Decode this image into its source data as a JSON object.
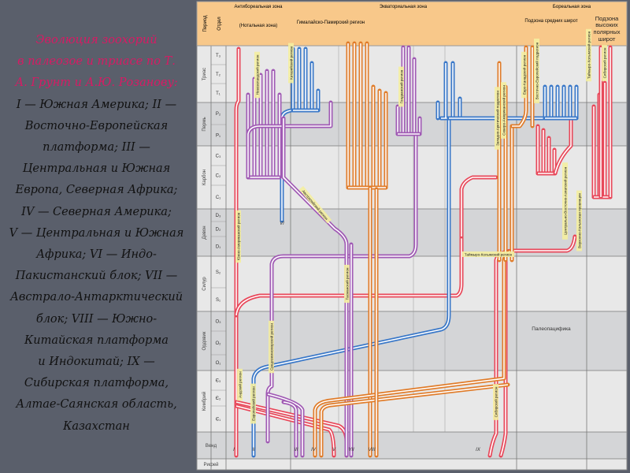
{
  "caption": {
    "title_lines": [
      "Эволюция зоохорий",
      "в палеозое и триасе по Т.",
      "А. Грунт и А.Ю. Розанову:"
    ],
    "body_lines": [
      "I — Южная Америка; II —",
      "Восточно-Европейская",
      "платформа; III —",
      "Центральная и Южная",
      "Европа, Северная Африка;",
      "IV — Северная Америка;",
      "V — Центральная и Южная",
      "Африка; VI — Индо-",
      "Пакистанский блок; VII —",
      "Австрало-Антарктический",
      "блок; VIII — Южно-",
      "Китайская платформа",
      "и Индокитай; IX —",
      "Сибирская платформа,",
      "Алтае-Саянская область,",
      "Казахстан"
    ]
  },
  "header": {
    "period": "Период",
    "division": "Отдел",
    "antiboreal": "Антибореальная зона",
    "notal": "(Нотальная зона)",
    "equatorial": "Экваториальная зона",
    "himalayan": "Гималайско-Памирский регион",
    "boreal": "Бореальная зона",
    "mid_lat": "Подзона средних широт",
    "high_lat": "Подзона высоких полярных широт"
  },
  "periods": [
    {
      "name": "Триас",
      "stages": [
        "T₃",
        "T₂",
        "T₁"
      ]
    },
    {
      "name": "Пермь",
      "stages": [
        "P₂",
        "P₁"
      ]
    },
    {
      "name": "Карбон",
      "stages": [
        "C₃",
        "C₂",
        "C₁"
      ]
    },
    {
      "name": "Девон",
      "stages": [
        "D₃",
        "D₂",
        "D₁"
      ]
    },
    {
      "name": "Силур",
      "stages": [
        "S₂",
        "S₁"
      ]
    },
    {
      "name": "Ордовик",
      "stages": [
        "O₃",
        "O₂",
        "O₁"
      ]
    },
    {
      "name": "Кембрий",
      "stages": [
        "Є₃",
        "Є₂",
        "Є₁"
      ]
    },
    {
      "name": "Венд",
      "stages": []
    },
    {
      "name": "Рифей",
      "stages": []
    }
  ],
  "numerals": [
    "I",
    "II",
    "III",
    "IV",
    "V",
    "VI",
    "VII",
    "VIII",
    "IX"
  ],
  "region_labels": [
    "Южно-Американский регион",
    "Андский регион",
    "Европейский регион",
    "Новозеландский регион",
    "Катазийский регион",
    "Австралийский регион",
    "Тасманский регион",
    "Средиземноморский регион",
    "Гондванский регион",
    "Западно-Арктический подрегион",
    "Северо-Американский регион",
    "Евро-Канадский регион",
    "Восточно-Европейский подрегион",
    "Таймыро-Колымский регион",
    "Сибирский регион",
    "Центрально-Восточно-Азиатский регион",
    "Таймыро-Колымский регион",
    "Верхояно-Колымская провинция",
    "Сибирский регион"
  ],
  "paleopacific": "Палеопацифика",
  "colors": {
    "red": "#e8485a",
    "blue": "#3a78c8",
    "purple": "#a05ab4",
    "orange": "#e07c2a",
    "header": "#f8c88a",
    "label": "#f4eea0"
  }
}
